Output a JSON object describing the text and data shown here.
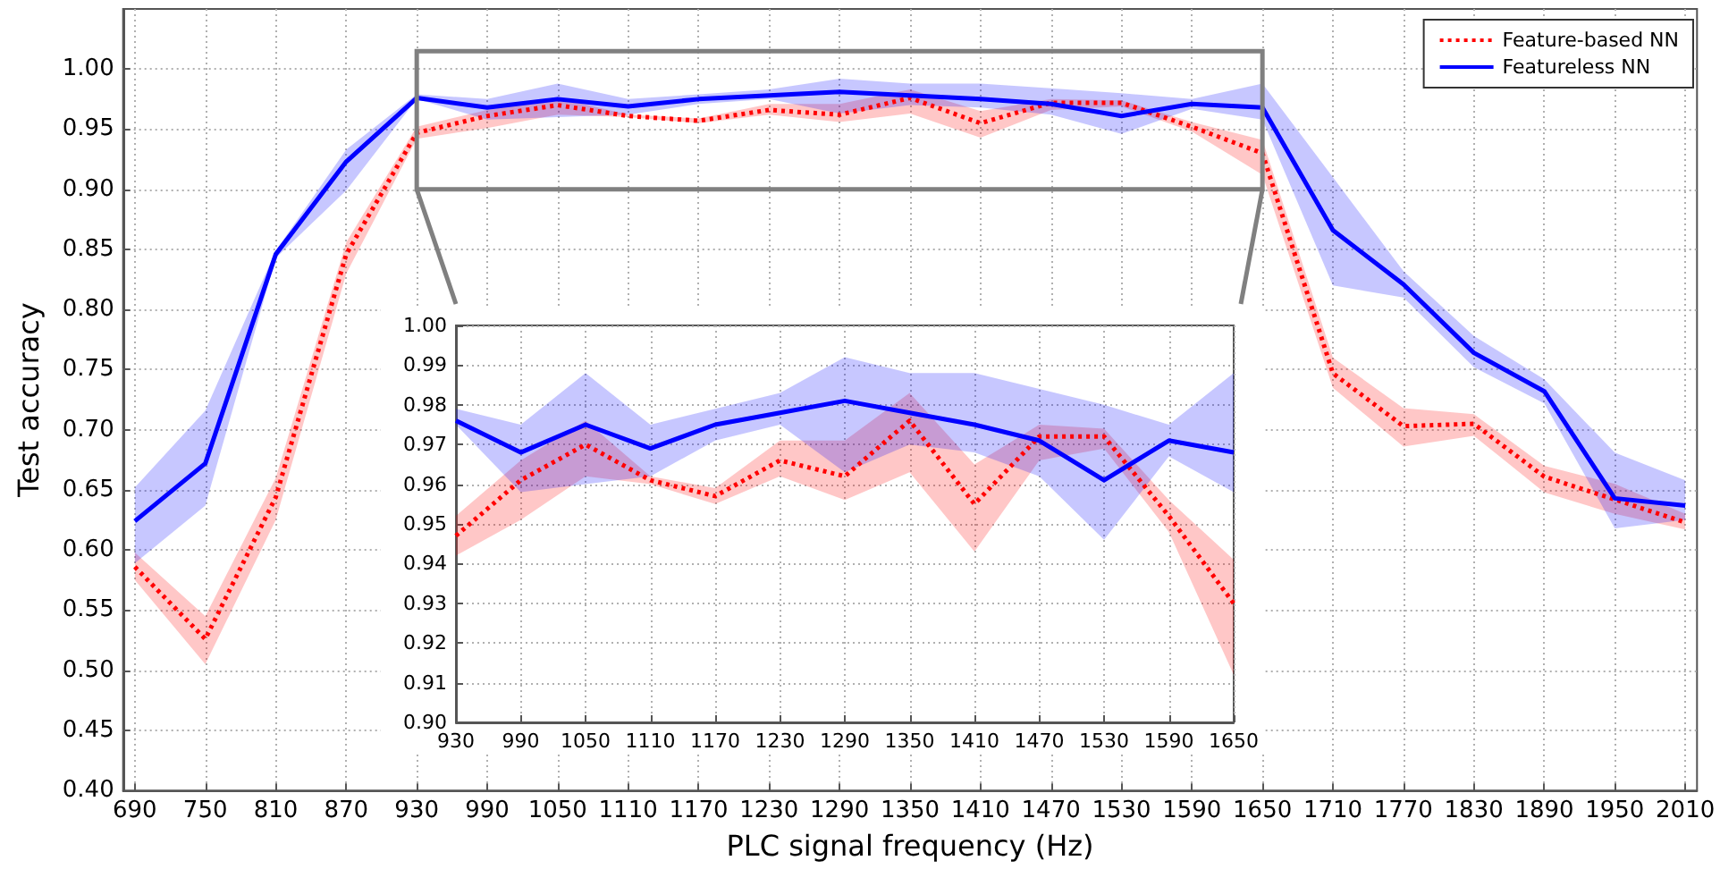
{
  "chart_data": [
    {
      "type": "line",
      "xlabel": "PLC signal frequency (Hz)",
      "ylabel": "Test accuracy",
      "x": [
        690,
        750,
        810,
        870,
        930,
        990,
        1050,
        1110,
        1170,
        1230,
        1290,
        1350,
        1410,
        1470,
        1530,
        1590,
        1650,
        1710,
        1770,
        1830,
        1890,
        1950,
        2010
      ],
      "series": [
        {
          "name": "Feature-based NN",
          "color": "#ff0000",
          "line_style": "dotted",
          "values": [
            0.586,
            0.526,
            0.644,
            0.846,
            0.947,
            0.961,
            0.97,
            0.961,
            0.957,
            0.966,
            0.962,
            0.976,
            0.955,
            0.972,
            0.972,
            0.952,
            0.93,
            0.747,
            0.703,
            0.705,
            0.661,
            0.642,
            0.623
          ],
          "lower": [
            0.575,
            0.505,
            0.625,
            0.83,
            0.942,
            0.951,
            0.962,
            0.96,
            0.955,
            0.962,
            0.956,
            0.963,
            0.943,
            0.966,
            0.969,
            0.948,
            0.912,
            0.735,
            0.686,
            0.695,
            0.648,
            0.63,
            0.617
          ],
          "upper": [
            0.598,
            0.545,
            0.66,
            0.856,
            0.952,
            0.966,
            0.976,
            0.962,
            0.959,
            0.971,
            0.971,
            0.983,
            0.965,
            0.975,
            0.974,
            0.956,
            0.941,
            0.76,
            0.718,
            0.713,
            0.67,
            0.655,
            0.63
          ]
        },
        {
          "name": "Featureless NN",
          "color": "#0000ff",
          "line_style": "solid",
          "values": [
            0.624,
            0.672,
            0.846,
            0.923,
            0.976,
            0.968,
            0.975,
            0.969,
            0.975,
            0.978,
            0.981,
            0.978,
            0.975,
            0.971,
            0.961,
            0.971,
            0.968,
            0.866,
            0.821,
            0.764,
            0.732,
            0.643,
            0.637
          ],
          "lower": [
            0.589,
            0.637,
            0.843,
            0.899,
            0.975,
            0.958,
            0.96,
            0.962,
            0.971,
            0.975,
            0.963,
            0.97,
            0.968,
            0.962,
            0.946,
            0.967,
            0.958,
            0.82,
            0.81,
            0.752,
            0.722,
            0.618,
            0.625
          ],
          "upper": [
            0.652,
            0.716,
            0.849,
            0.933,
            0.979,
            0.975,
            0.988,
            0.975,
            0.979,
            0.983,
            0.992,
            0.988,
            0.988,
            0.984,
            0.98,
            0.975,
            0.988,
            0.91,
            0.832,
            0.778,
            0.742,
            0.681,
            0.658
          ]
        }
      ],
      "xlim": [
        680,
        2020
      ],
      "xticks": [
        690,
        750,
        810,
        870,
        930,
        990,
        1050,
        1110,
        1170,
        1230,
        1290,
        1350,
        1410,
        1470,
        1530,
        1590,
        1650,
        1710,
        1770,
        1830,
        1890,
        1950,
        2010
      ],
      "ylim": [
        0.4,
        1.05
      ],
      "yticks": [
        {
          "value": 0.4,
          "label": "0.40"
        },
        {
          "value": 0.45,
          "label": "0.45"
        },
        {
          "value": 0.5,
          "label": "0.50"
        },
        {
          "value": 0.55,
          "label": "0.55"
        },
        {
          "value": 0.6,
          "label": "0.60"
        },
        {
          "value": 0.65,
          "label": "0.65"
        },
        {
          "value": 0.7,
          "label": "0.70"
        },
        {
          "value": 0.75,
          "label": "0.75"
        },
        {
          "value": 0.8,
          "label": "0.80"
        },
        {
          "value": 0.85,
          "label": "0.85"
        },
        {
          "value": 0.9,
          "label": "0.90"
        },
        {
          "value": 0.95,
          "label": "0.95"
        },
        {
          "value": 1,
          "label": "1.00"
        }
      ],
      "grid": true,
      "legend": "top right",
      "marker": "none"
    },
    {
      "type": "line",
      "x": [
        930,
        990,
        1050,
        1110,
        1170,
        1230,
        1290,
        1350,
        1410,
        1470,
        1530,
        1590,
        1650
      ],
      "series": [
        {
          "color": "#ff0000",
          "line_style": "dotted",
          "values": [
            0.947,
            0.961,
            0.97,
            0.961,
            0.957,
            0.966,
            0.962,
            0.976,
            0.955,
            0.972,
            0.972,
            0.952,
            0.93
          ],
          "lower": [
            0.942,
            0.951,
            0.962,
            0.96,
            0.955,
            0.962,
            0.956,
            0.963,
            0.943,
            0.966,
            0.969,
            0.948,
            0.912
          ],
          "upper": [
            0.952,
            0.966,
            0.976,
            0.962,
            0.959,
            0.971,
            0.971,
            0.983,
            0.965,
            0.975,
            0.974,
            0.956,
            0.941
          ]
        },
        {
          "color": "#0000ff",
          "line_style": "solid",
          "values": [
            0.976,
            0.968,
            0.975,
            0.969,
            0.975,
            0.978,
            0.981,
            0.978,
            0.975,
            0.971,
            0.961,
            0.971,
            0.968
          ],
          "lower": [
            0.975,
            0.958,
            0.96,
            0.962,
            0.971,
            0.975,
            0.963,
            0.97,
            0.968,
            0.962,
            0.946,
            0.967,
            0.958
          ],
          "upper": [
            0.979,
            0.975,
            0.988,
            0.975,
            0.979,
            0.983,
            0.992,
            0.988,
            0.988,
            0.984,
            0.98,
            0.975,
            0.988
          ]
        }
      ],
      "xlim": [
        930,
        1650
      ],
      "xticks": [
        930,
        990,
        1050,
        1110,
        1170,
        1230,
        1290,
        1350,
        1410,
        1470,
        1530,
        1590,
        1650
      ],
      "ylim": [
        0.9,
        1
      ],
      "yticks": [
        {
          "value": 0.9,
          "label": "0.90"
        },
        {
          "value": 0.91,
          "label": "0.91"
        },
        {
          "value": 0.92,
          "label": "0.92"
        },
        {
          "value": 0.93,
          "label": "0.93"
        },
        {
          "value": 0.94,
          "label": "0.94"
        },
        {
          "value": 0.95,
          "label": "0.95"
        },
        {
          "value": 0.96,
          "label": "0.96"
        },
        {
          "value": 0.97,
          "label": "0.97"
        },
        {
          "value": 0.98,
          "label": "0.98"
        },
        {
          "value": 0.99,
          "label": "0.99"
        },
        {
          "value": 1,
          "label": "1.00"
        }
      ],
      "grid": true,
      "marker": "none"
    }
  ]
}
